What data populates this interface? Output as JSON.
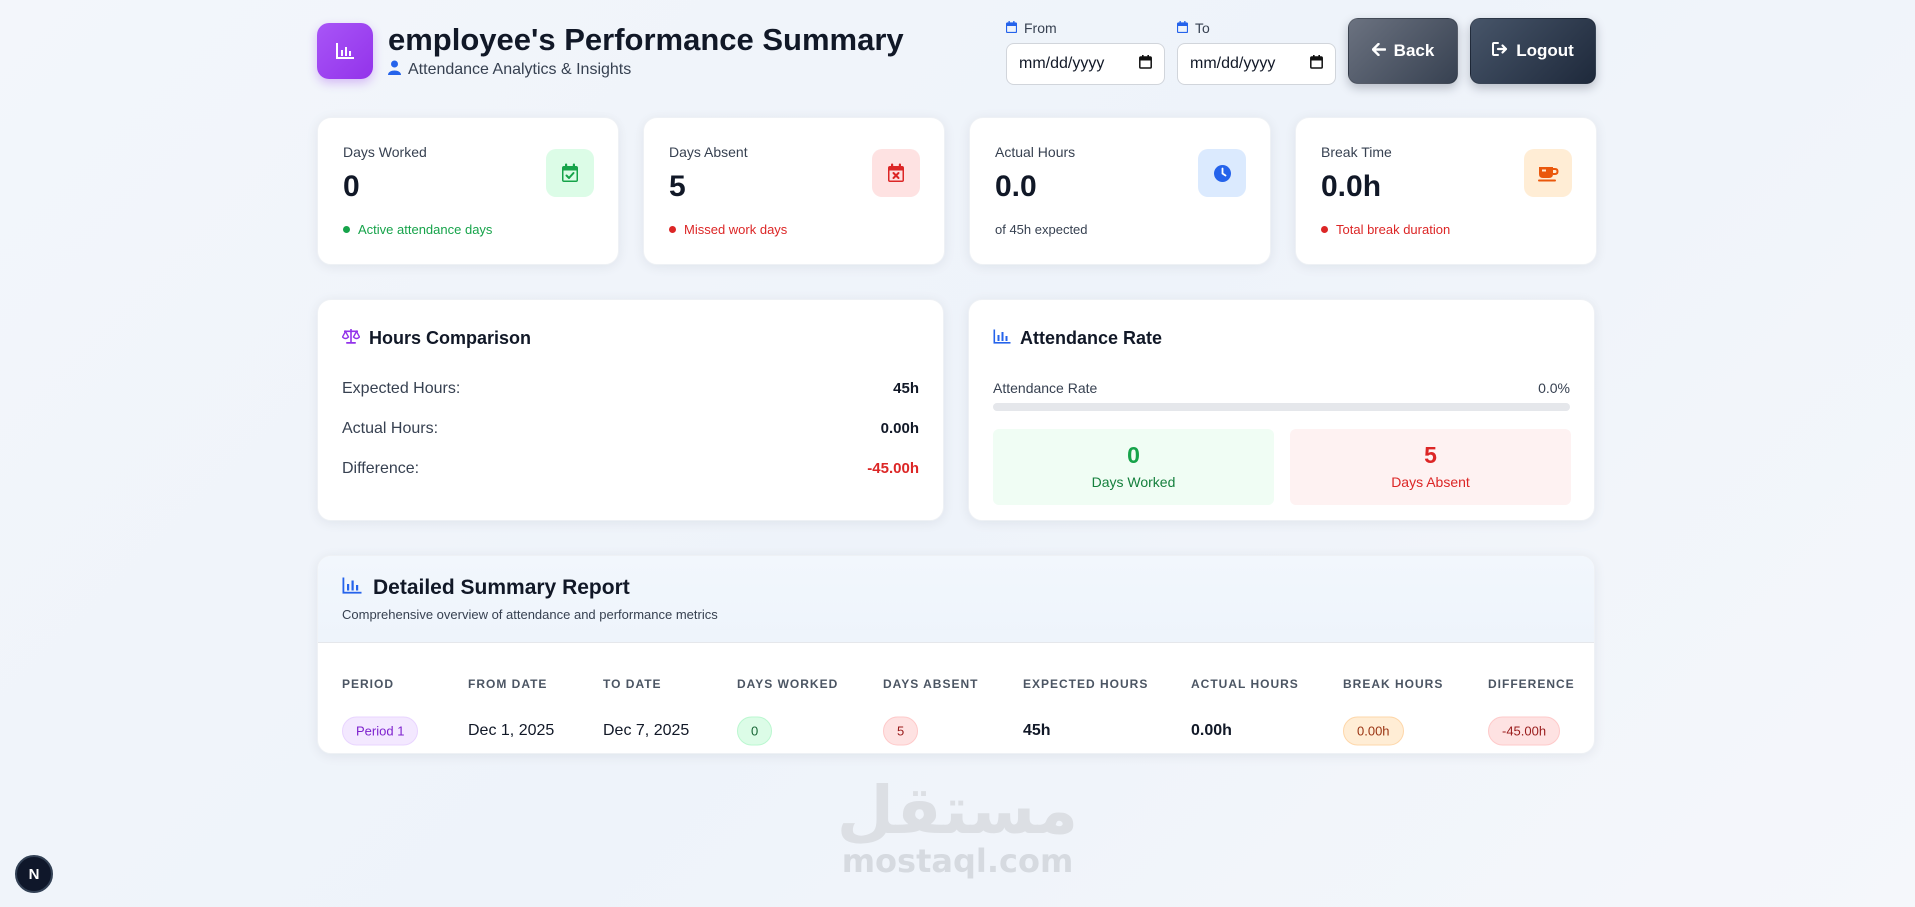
{
  "header": {
    "title": "employee's Performance Summary",
    "subtitle": "Attendance Analytics & Insights",
    "from_label": "From",
    "to_label": "To",
    "from_value": "mm/dd/yyyy",
    "to_value": "mm/dd/yyyy",
    "back_label": "Back",
    "logout_label": "Logout"
  },
  "stats": [
    {
      "label": "Days Worked",
      "value": "0",
      "note": "Active attendance days",
      "note_color": "#16a34a",
      "icon": "calendar-check-icon",
      "icon_color": "#16a34a",
      "icon_bg": "#dcfce7"
    },
    {
      "label": "Days Absent",
      "value": "5",
      "note": "Missed work days",
      "note_color": "#dc2626",
      "icon": "calendar-x-icon",
      "icon_color": "#dc2626",
      "icon_bg": "#fee2e2"
    },
    {
      "label": "Actual Hours",
      "value": "0.0",
      "note": "of 45h expected",
      "note_color": "#374151",
      "icon": "clock-icon",
      "icon_color": "#2563eb",
      "icon_bg": "#dbeafe"
    },
    {
      "label": "Break Time",
      "value": "0.0h",
      "note": "Total break duration",
      "note_color": "#dc2626",
      "icon": "coffee-icon",
      "icon_color": "#ea580c",
      "icon_bg": "#ffedd5"
    }
  ],
  "hours": {
    "title": "Hours Comparison",
    "rows": [
      {
        "label": "Expected Hours:",
        "value": "45h"
      },
      {
        "label": "Actual Hours:",
        "value": "0.00h"
      },
      {
        "label": "Difference:",
        "value": "-45.00h"
      }
    ]
  },
  "attendance": {
    "title": "Attendance Rate",
    "rate_label": "Attendance Rate",
    "rate_text": "0.0%",
    "rate_fraction": 0.0,
    "worked_value": "0",
    "worked_label": "Days Worked",
    "absent_value": "5",
    "absent_label": "Days Absent"
  },
  "report": {
    "title": "Detailed Summary Report",
    "subtitle": "Comprehensive overview of attendance and performance metrics",
    "columns": [
      "PERIOD",
      "FROM DATE",
      "TO DATE",
      "DAYS WORKED",
      "DAYS ABSENT",
      "EXPECTED HOURS",
      "ACTUAL HOURS",
      "BREAK HOURS",
      "DIFFERENCE"
    ],
    "rows": [
      {
        "period": "Period 1",
        "from": "Dec 1, 2025",
        "to": "Dec 7, 2025",
        "worked": "0",
        "absent": "5",
        "expected": "45h",
        "actual": "0.00h",
        "break": "0.00h",
        "difference": "-45.00h"
      }
    ]
  },
  "watermark": {
    "arabic": "مستقل",
    "latin": "mostaql.com"
  },
  "dev_badge": "N"
}
